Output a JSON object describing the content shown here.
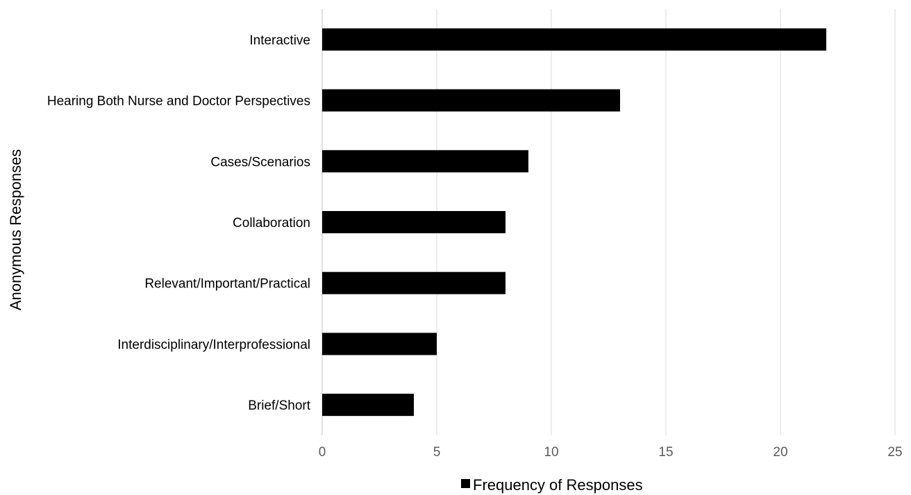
{
  "chart_data": {
    "type": "bar",
    "orientation": "horizontal",
    "title": "",
    "xlabel": "",
    "ylabel": "Anonymous Responses",
    "categories": [
      "Interactive",
      "Hearing Both Nurse and Doctor Perspectives",
      "Cases/Scenarios",
      "Collaboration",
      "Relevant/Important/Practical",
      "Interdisciplinary/Interprofessional",
      "Brief/Short"
    ],
    "series": [
      {
        "name": "Frequency of Responses",
        "values": [
          22,
          13,
          9,
          8,
          8,
          5,
          4
        ],
        "color": "#000000"
      }
    ],
    "xlim": [
      0,
      25
    ],
    "xticks": [
      "0",
      "5",
      "10",
      "15",
      "20",
      "25"
    ],
    "grid": "vertical",
    "legend_position": "bottom"
  }
}
